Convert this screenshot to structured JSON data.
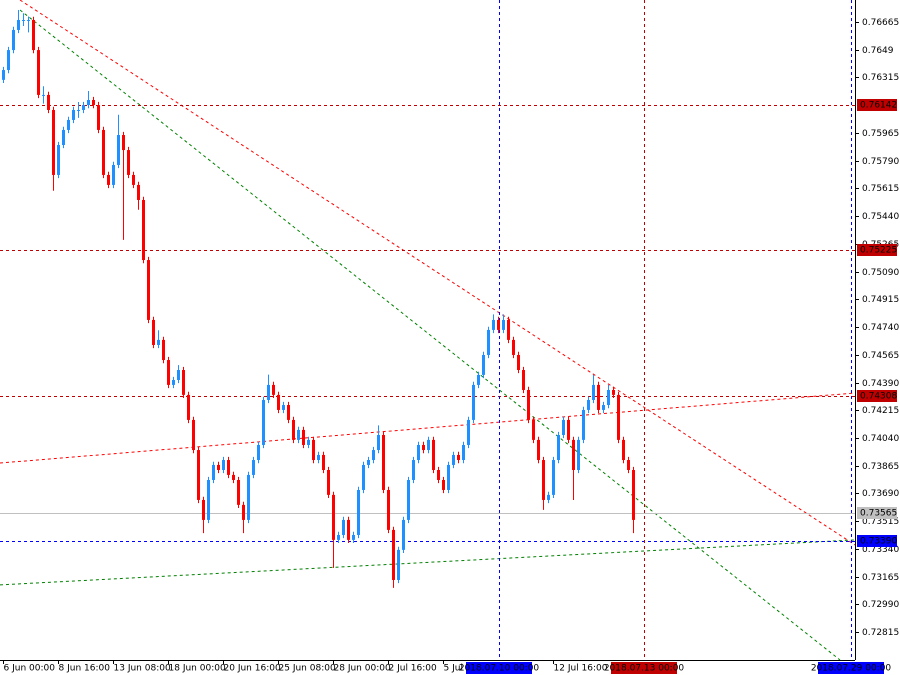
{
  "chart_data": {
    "type": "candlestick",
    "xlim": [
      -0.6,
      170.4
    ],
    "ylim": [
      0.72639,
      0.76804
    ],
    "yticks": [
      0.76665,
      0.7649,
      0.76315,
      0.75965,
      {
        "value": 0.7579,
        "label": "0.75790"
      },
      0.75615,
      {
        "value": 0.7544,
        "label": "0.75440"
      },
      0.75265,
      {
        "value": 0.7509,
        "label": "0.75090"
      },
      0.74915,
      {
        "value": 0.7474,
        "label": "0.74740"
      },
      0.74565,
      {
        "value": 0.7439,
        "label": "0.74390"
      },
      0.74215,
      {
        "value": 0.7404,
        "label": "0.74040"
      },
      0.73865,
      {
        "value": 0.7369,
        "label": "0.73690"
      },
      0.73515,
      {
        "value": 0.7334,
        "label": "0.73340"
      },
      0.73165,
      {
        "value": 0.7299,
        "label": "0.72990"
      },
      0.72815
    ],
    "xticks": [
      {
        "value": 0,
        "label": "6 Jun 00:00"
      },
      {
        "value": 11,
        "label": "8 Jun 16:00"
      },
      {
        "value": 22,
        "label": "13 Jun 08:00"
      },
      {
        "value": 33,
        "label": "18 Jun 00:00"
      },
      {
        "value": 44,
        "label": "20 Jun 16:00"
      },
      {
        "value": 55,
        "label": "25 Jun 08:00"
      },
      {
        "value": 66,
        "label": "28 Jun 00:00"
      },
      {
        "value": 77,
        "label": "2 Jul 16:00"
      },
      {
        "value": 88,
        "label": "5 Jul 08:00"
      },
      {
        "value": 110,
        "label": "12 Jul 16:00"
      }
    ],
    "candles": {
      "up_color": "#1e90ff",
      "down_color": "#ff0000",
      "open": [
        0.763,
        0.76362,
        0.76488,
        0.76615,
        0.76678,
        0.76678,
        0.76678,
        0.76488,
        0.76205,
        0.76205,
        0.7611,
        0.757,
        0.75889,
        0.75984,
        0.76047,
        0.7611,
        0.7611,
        0.76141,
        0.76173,
        0.76141,
        0.75984,
        0.757,
        0.75637,
        0.75763,
        0.75952,
        0.75857,
        0.757,
        0.75637,
        0.75542,
        0.75163,
        0.74785,
        0.74627,
        0.74659,
        0.74532,
        0.74375,
        0.74406,
        0.74469,
        0.74312,
        0.74154,
        0.73964,
        0.73649,
        0.73523,
        0.73775,
        0.7387,
        0.73838,
        0.73901,
        0.73807,
        0.73775,
        0.73618,
        0.73523,
        0.73807,
        0.73901,
        0.73996,
        0.7428,
        0.74375,
        0.74312,
        0.74217,
        0.74248,
        0.74154,
        0.74028,
        0.74091,
        0.73996,
        0.74028,
        0.73901,
        0.73933,
        0.73838,
        0.73681,
        0.73397,
        0.73428,
        0.73523,
        0.73397,
        0.73428,
        0.73712,
        0.7387,
        0.73901,
        0.73964,
        0.74059,
        0.73712,
        0.7346,
        0.73144,
        0.73334,
        0.73523,
        0.73775,
        0.73901,
        0.73996,
        0.73964,
        0.74028,
        0.73838,
        0.73775,
        0.73712,
        0.7387,
        0.73933,
        0.73901,
        0.73996,
        0.74154,
        0.74375,
        0.74438,
        0.74564,
        0.74722,
        0.74785,
        0.74722,
        0.74785,
        0.74659,
        0.74564,
        0.74469,
        0.74343,
        0.74154,
        0.74028,
        0.73901,
        0.73649,
        0.73681,
        0.73901,
        0.74059,
        0.74154,
        0.74028,
        0.73838,
        0.74028,
        0.74217,
        0.7428,
        0.74375,
        0.74217,
        0.74248,
        0.74343,
        0.74312,
        0.74028,
        0.73901,
        0.73838
      ],
      "high": [
        0.76382,
        0.76508,
        0.76635,
        0.76741,
        0.7672,
        0.767,
        0.76698,
        0.76508,
        0.7626,
        0.76225,
        0.7613,
        0.75909,
        0.76004,
        0.76067,
        0.7613,
        0.7616,
        0.76161,
        0.7623,
        0.76193,
        0.76161,
        0.76004,
        0.7572,
        0.75783,
        0.7608,
        0.75972,
        0.75877,
        0.7572,
        0.75657,
        0.75562,
        0.75183,
        0.74805,
        0.7472,
        0.74679,
        0.74552,
        0.74426,
        0.745,
        0.74489,
        0.74332,
        0.74174,
        0.73984,
        0.73669,
        0.73795,
        0.7389,
        0.7389,
        0.73921,
        0.73921,
        0.73827,
        0.73795,
        0.73638,
        0.73827,
        0.73921,
        0.74016,
        0.743,
        0.7444,
        0.74395,
        0.74332,
        0.74268,
        0.74268,
        0.74174,
        0.74111,
        0.74111,
        0.74048,
        0.74048,
        0.73953,
        0.73953,
        0.73858,
        0.73701,
        0.73448,
        0.73543,
        0.73543,
        0.73448,
        0.73732,
        0.7389,
        0.73921,
        0.73984,
        0.7412,
        0.74079,
        0.73732,
        0.7348,
        0.73354,
        0.73543,
        0.73795,
        0.73921,
        0.74016,
        0.74016,
        0.74048,
        0.74048,
        0.73858,
        0.73795,
        0.7389,
        0.73953,
        0.73953,
        0.74016,
        0.74174,
        0.74395,
        0.74458,
        0.74584,
        0.74742,
        0.7482,
        0.74805,
        0.7482,
        0.74805,
        0.74679,
        0.74584,
        0.74489,
        0.74363,
        0.74174,
        0.74048,
        0.73921,
        0.73701,
        0.73921,
        0.74079,
        0.74174,
        0.74174,
        0.74048,
        0.74048,
        0.74237,
        0.743,
        0.74438,
        0.74395,
        0.74268,
        0.74375,
        0.74363,
        0.74332,
        0.74048,
        0.73921,
        0.73858
      ],
      "low": [
        0.7628,
        0.76342,
        0.76468,
        0.76595,
        0.7664,
        0.766,
        0.76468,
        0.76185,
        0.7615,
        0.7609,
        0.756,
        0.7568,
        0.75869,
        0.75964,
        0.76027,
        0.7606,
        0.7609,
        0.76121,
        0.76121,
        0.75964,
        0.7568,
        0.75617,
        0.75617,
        0.75743,
        0.7529,
        0.7568,
        0.75617,
        0.7548,
        0.75143,
        0.74765,
        0.74607,
        0.74607,
        0.74512,
        0.74355,
        0.74355,
        0.74386,
        0.74292,
        0.74134,
        0.73944,
        0.73629,
        0.7344,
        0.73503,
        0.73755,
        0.73818,
        0.73818,
        0.73787,
        0.73755,
        0.73598,
        0.7344,
        0.73503,
        0.73787,
        0.73881,
        0.73976,
        0.7426,
        0.74292,
        0.74197,
        0.74197,
        0.74134,
        0.74008,
        0.74008,
        0.73976,
        0.73976,
        0.73881,
        0.73881,
        0.73818,
        0.73661,
        0.7322,
        0.73377,
        0.73408,
        0.73377,
        0.73377,
        0.73408,
        0.73692,
        0.7385,
        0.73881,
        0.73944,
        0.73692,
        0.7344,
        0.73094,
        0.73124,
        0.73314,
        0.73503,
        0.73755,
        0.73881,
        0.73944,
        0.73944,
        0.73818,
        0.73755,
        0.73692,
        0.73692,
        0.7385,
        0.73881,
        0.73881,
        0.73976,
        0.74134,
        0.74355,
        0.74418,
        0.74544,
        0.74702,
        0.74702,
        0.74702,
        0.74639,
        0.74544,
        0.74449,
        0.74323,
        0.74134,
        0.74008,
        0.73881,
        0.73586,
        0.73629,
        0.73661,
        0.73881,
        0.74039,
        0.74008,
        0.73649,
        0.73818,
        0.74008,
        0.74197,
        0.7426,
        0.74197,
        0.74197,
        0.74228,
        0.74292,
        0.74008,
        0.73881,
        0.73818,
        0.7344
      ],
      "close": [
        0.76362,
        0.76488,
        0.76615,
        0.76678,
        0.76678,
        0.76678,
        0.76488,
        0.76205,
        0.76205,
        0.7611,
        0.757,
        0.75889,
        0.75984,
        0.76047,
        0.7611,
        0.7611,
        0.76141,
        0.76173,
        0.76141,
        0.75984,
        0.757,
        0.75637,
        0.75763,
        0.75952,
        0.75857,
        0.757,
        0.75637,
        0.75542,
        0.75163,
        0.74785,
        0.74627,
        0.74659,
        0.74532,
        0.74375,
        0.74406,
        0.74469,
        0.74312,
        0.74154,
        0.73964,
        0.73649,
        0.73523,
        0.73775,
        0.7387,
        0.73838,
        0.73901,
        0.73807,
        0.73775,
        0.73618,
        0.73523,
        0.73807,
        0.73901,
        0.73996,
        0.7428,
        0.74375,
        0.74312,
        0.74217,
        0.74248,
        0.74154,
        0.74028,
        0.74091,
        0.73996,
        0.74028,
        0.73901,
        0.73933,
        0.73838,
        0.73681,
        0.73397,
        0.73428,
        0.73523,
        0.73397,
        0.73428,
        0.73712,
        0.7387,
        0.73901,
        0.73964,
        0.74059,
        0.73712,
        0.7346,
        0.73144,
        0.73334,
        0.73523,
        0.73775,
        0.73901,
        0.73996,
        0.73964,
        0.74028,
        0.73838,
        0.73775,
        0.73712,
        0.7387,
        0.73933,
        0.73901,
        0.73996,
        0.74154,
        0.74375,
        0.74438,
        0.74564,
        0.74722,
        0.74785,
        0.74722,
        0.74785,
        0.74659,
        0.74564,
        0.74469,
        0.74343,
        0.74154,
        0.74028,
        0.73901,
        0.73649,
        0.73681,
        0.73901,
        0.74059,
        0.74154,
        0.74028,
        0.73838,
        0.74028,
        0.74217,
        0.7428,
        0.74375,
        0.74217,
        0.74248,
        0.74343,
        0.74312,
        0.74028,
        0.73901,
        0.73838,
        0.73523
      ]
    },
    "trendlines": [
      {
        "color": "#ff0000",
        "x": [
          3.4,
          170.4
        ],
        "values": [
          0.76804,
          0.73365
        ]
      },
      {
        "color": "#008000",
        "x": [
          3.4,
          167.4
        ],
        "values": [
          0.76741,
          0.72639
        ]
      },
      {
        "color": "#ff0000",
        "x": [
          -0.6,
          170.4
        ],
        "values": [
          0.73882,
          0.74324
        ]
      },
      {
        "color": "#008000",
        "x": [
          -0.6,
          170.4
        ],
        "values": [
          0.73113,
          0.73397
        ]
      }
    ],
    "hlines": [
      {
        "value": 0.76142,
        "label": "0.76142",
        "color": "#c00000",
        "dashed": true
      },
      {
        "value": 0.75225,
        "label": "0.75225",
        "color": "#c00000",
        "dashed": true
      },
      {
        "value": 0.74308,
        "label": "0.74308",
        "color": "#c00000",
        "dashed": true
      },
      {
        "value": 0.73565,
        "label": "0.73565",
        "color": "#c0c0c0",
        "dashed": false
      },
      {
        "value": 0.7339,
        "label": "0.73390",
        "color": "#0000ff",
        "dashed": true
      }
    ],
    "vlines": [
      {
        "x": 99.2,
        "label": "2018.07.10 00:00",
        "color": "#0000ff"
      },
      {
        "x": 128.2,
        "label": "2018.07.13 00:00",
        "color": "#c00000"
      },
      {
        "x": 169.6,
        "label": "2018.07.29 00:00",
        "color": "#0000ff"
      }
    ]
  }
}
